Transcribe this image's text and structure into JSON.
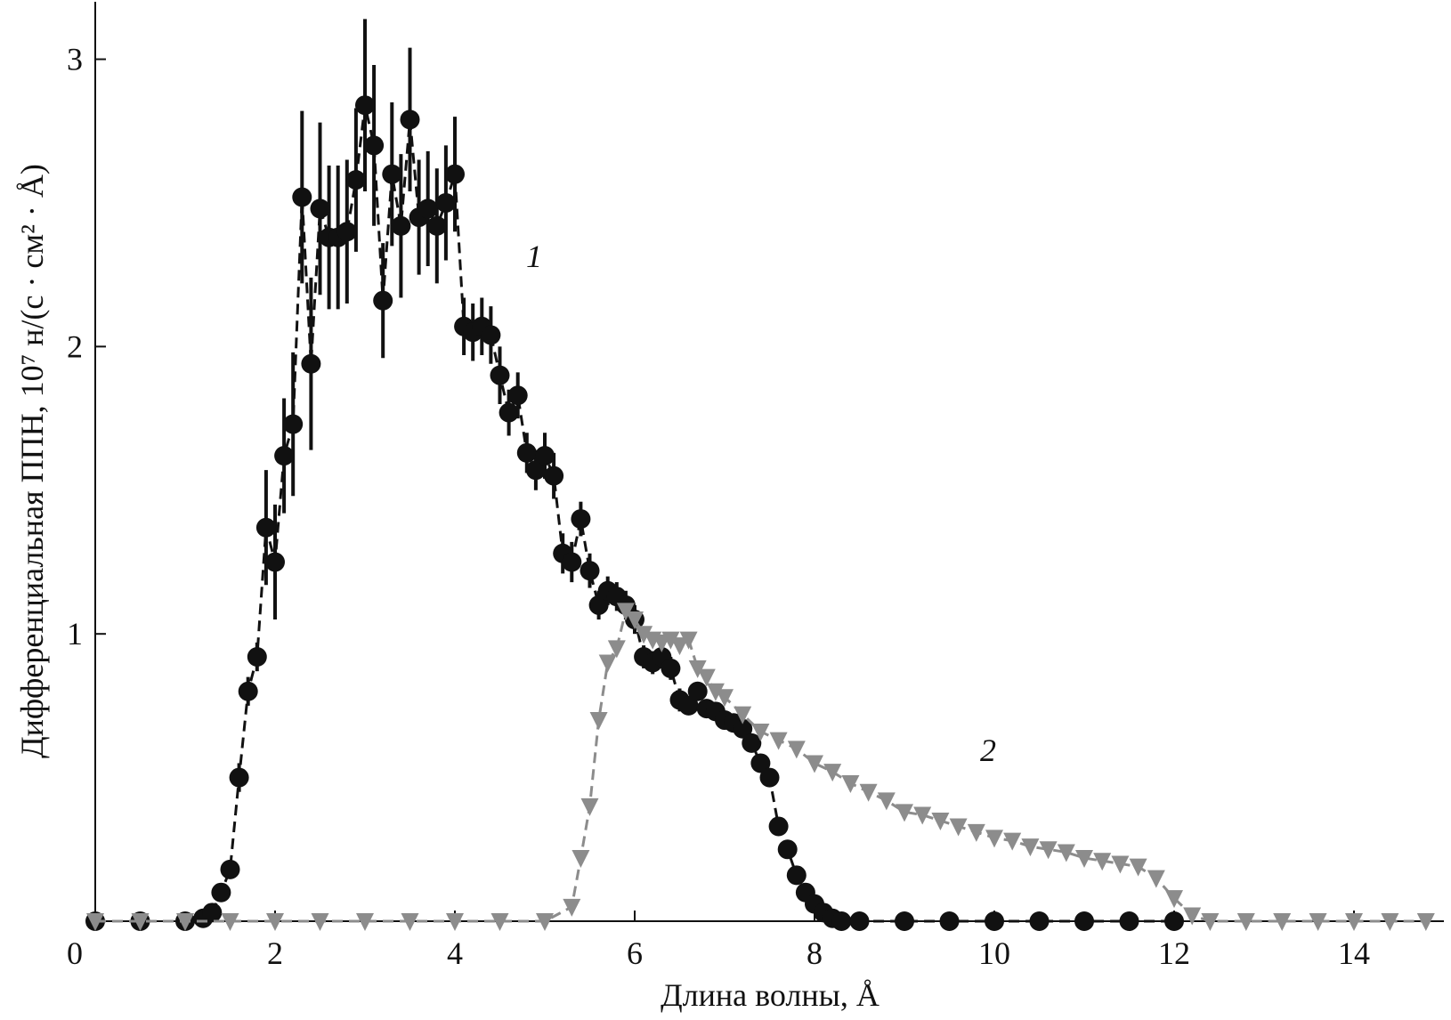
{
  "chart_data": {
    "type": "line",
    "x_label": "Длина волны, Å",
    "y_label": "Дифференциальная ППН, 10⁷ н/(с · см² · Å)",
    "xlim": [
      0,
      15
    ],
    "ylim": [
      0,
      3.2
    ],
    "xticks": [
      0,
      2,
      4,
      6,
      8,
      10,
      12,
      14
    ],
    "yticks": [
      1,
      2,
      3
    ],
    "series": [
      {
        "name": "1",
        "color": "#111111",
        "marker": "circle",
        "x": [
          0,
          0.5,
          1,
          1.2,
          1.3,
          1.4,
          1.5,
          1.6,
          1.7,
          1.8,
          1.9,
          2.0,
          2.1,
          2.2,
          2.3,
          2.4,
          2.5,
          2.6,
          2.7,
          2.8,
          2.9,
          3.0,
          3.1,
          3.2,
          3.3,
          3.4,
          3.5,
          3.6,
          3.7,
          3.8,
          3.9,
          4.0,
          4.1,
          4.2,
          4.3,
          4.4,
          4.5,
          4.6,
          4.7,
          4.8,
          4.9,
          5.0,
          5.1,
          5.2,
          5.3,
          5.4,
          5.5,
          5.6,
          5.7,
          5.8,
          5.9,
          6.0,
          6.1,
          6.2,
          6.3,
          6.4,
          6.5,
          6.6,
          6.7,
          6.8,
          6.9,
          7.0,
          7.1,
          7.2,
          7.3,
          7.4,
          7.5,
          7.6,
          7.7,
          7.8,
          7.9,
          8.0,
          8.1,
          8.2,
          8.3,
          8.5,
          9,
          9.5,
          10,
          10.5,
          11,
          11.5,
          12
        ],
        "values": [
          0,
          0,
          0,
          0.01,
          0.03,
          0.1,
          0.18,
          0.5,
          0.8,
          0.92,
          1.37,
          1.25,
          1.62,
          1.73,
          2.52,
          1.94,
          2.48,
          2.38,
          2.38,
          2.4,
          2.58,
          2.84,
          2.7,
          2.16,
          2.6,
          2.42,
          2.79,
          2.45,
          2.48,
          2.42,
          2.5,
          2.6,
          2.07,
          2.05,
          2.07,
          2.04,
          1.9,
          1.77,
          1.83,
          1.63,
          1.57,
          1.62,
          1.55,
          1.28,
          1.25,
          1.4,
          1.22,
          1.1,
          1.15,
          1.13,
          1.1,
          1.05,
          0.92,
          0.9,
          0.92,
          0.88,
          0.77,
          0.75,
          0.8,
          0.74,
          0.73,
          0.7,
          0.69,
          0.67,
          0.62,
          0.55,
          0.5,
          0.33,
          0.25,
          0.16,
          0.1,
          0.06,
          0.03,
          0.01,
          0,
          0,
          0,
          0,
          0,
          0,
          0,
          0,
          0
        ],
        "errors": [
          0,
          0,
          0,
          0,
          0,
          0.02,
          0.03,
          0.05,
          0.05,
          0.05,
          0.2,
          0.2,
          0.2,
          0.25,
          0.3,
          0.3,
          0.3,
          0.25,
          0.25,
          0.25,
          0.25,
          0.3,
          0.28,
          0.2,
          0.25,
          0.25,
          0.25,
          0.2,
          0.2,
          0.2,
          0.2,
          0.2,
          0.1,
          0.1,
          0.1,
          0.1,
          0.1,
          0.08,
          0.08,
          0.07,
          0.07,
          0.08,
          0.08,
          0.07,
          0.07,
          0.06,
          0.06,
          0.05,
          0.05,
          0.05,
          0.05,
          0.05,
          0.04,
          0.04,
          0.04,
          0.04,
          0.04,
          0.03,
          0.03,
          0.03,
          0.03,
          0.03,
          0.03,
          0.03,
          0.02,
          0.02,
          0.02,
          0.02,
          0.02,
          0.02,
          0.02,
          0,
          0,
          0,
          0,
          0,
          0,
          0,
          0,
          0,
          0,
          0,
          0
        ]
      },
      {
        "name": "2",
        "color": "#8c8c8c",
        "marker": "triangle",
        "x": [
          0,
          0.5,
          1,
          1.5,
          2,
          2.5,
          3,
          3.5,
          4,
          4.5,
          5,
          5.3,
          5.4,
          5.5,
          5.6,
          5.7,
          5.8,
          5.9,
          6.0,
          6.1,
          6.2,
          6.3,
          6.4,
          6.5,
          6.6,
          6.7,
          6.8,
          6.9,
          7.0,
          7.2,
          7.4,
          7.6,
          7.8,
          8.0,
          8.2,
          8.4,
          8.6,
          8.8,
          9.0,
          9.2,
          9.4,
          9.6,
          9.8,
          10.0,
          10.2,
          10.4,
          10.6,
          10.8,
          11.0,
          11.2,
          11.4,
          11.6,
          11.8,
          12.0,
          12.2,
          12.4,
          12.8,
          13.2,
          13.6,
          14,
          14.4,
          14.8
        ],
        "values": [
          0,
          0,
          0,
          0,
          0,
          0,
          0,
          0,
          0,
          0,
          0,
          0.05,
          0.22,
          0.4,
          0.7,
          0.9,
          0.95,
          1.08,
          1.05,
          1.0,
          0.98,
          0.97,
          0.98,
          0.96,
          0.98,
          0.88,
          0.85,
          0.8,
          0.78,
          0.72,
          0.66,
          0.63,
          0.6,
          0.55,
          0.52,
          0.48,
          0.45,
          0.42,
          0.38,
          0.37,
          0.35,
          0.33,
          0.31,
          0.29,
          0.28,
          0.26,
          0.25,
          0.24,
          0.22,
          0.21,
          0.2,
          0.19,
          0.15,
          0.08,
          0.02,
          0,
          0,
          0,
          0,
          0,
          0,
          0
        ]
      }
    ]
  }
}
